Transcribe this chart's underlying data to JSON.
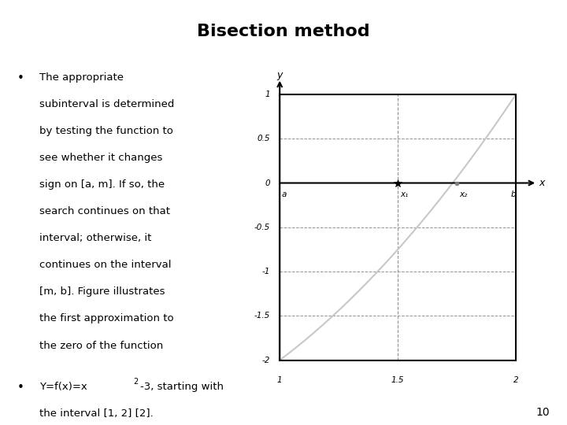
{
  "title": "Bisection method",
  "title_bg_color": "#aed8e0",
  "title_fontsize": 16,
  "slide_bg_color": "#ffffff",
  "page_number": "10",
  "bullet1_lines": [
    "The appropriate",
    "subinterval is determined",
    "by testing the function to",
    "see whether it changes",
    "sign on [a, m]. If so, the",
    "search continues on that",
    "interval; otherwise, it",
    "continues on the interval",
    "[m, b]. Figure illustrates",
    "the first approximation to",
    "the zero of the function"
  ],
  "bullet2_part1": "Y=f(x)=x",
  "bullet2_sup": "2",
  "bullet2_part2": "-3, starting with",
  "bullet2_line2": "the interval [1, 2] [2].",
  "plot": {
    "xlim": [
      1,
      2
    ],
    "ylim": [
      -2,
      1
    ],
    "x1_val": 1.5,
    "x2_val": 1.75,
    "line_color": "#c8c8c8",
    "grid_color": "#888888",
    "dashed_color": "#888888",
    "axis_color": "#000000",
    "box_color": "#000000"
  }
}
